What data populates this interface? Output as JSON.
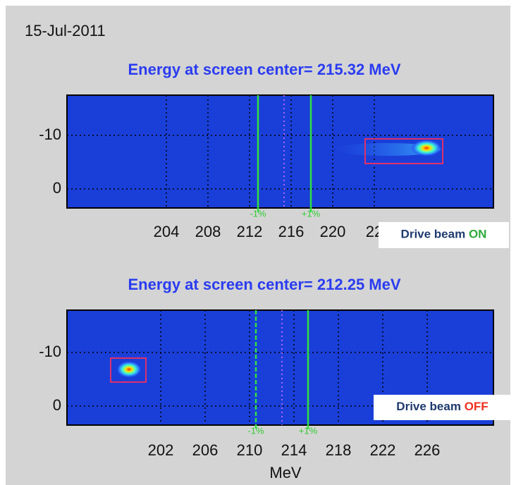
{
  "date": "15-Jul-2011",
  "panels": [
    {
      "title": "Energy at screen center= 215.32 MeV",
      "y_ticks": [
        "-10",
        "0"
      ],
      "x_ticks": [
        "204",
        "208",
        "212",
        "216",
        "220",
        "22"
      ],
      "markers": [
        "-1%",
        "+1%"
      ],
      "status": {
        "text": "Drive beam",
        "state": "ON"
      }
    },
    {
      "title": "Energy at screen center= 212.25 MeV",
      "y_ticks": [
        "-10",
        "0"
      ],
      "x_ticks": [
        "202",
        "206",
        "210",
        "214",
        "218",
        "222",
        "226"
      ],
      "markers": [
        "-1%",
        "+1%"
      ],
      "status": {
        "text": "Drive beam",
        "state": "OFF"
      }
    }
  ],
  "x_axis_label": "MeV"
}
